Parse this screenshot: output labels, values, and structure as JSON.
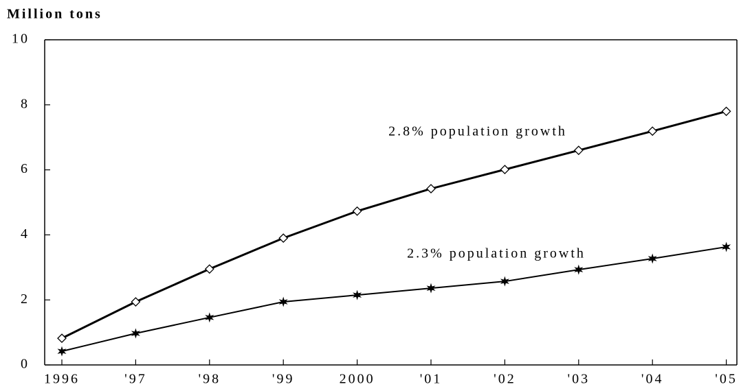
{
  "chart_data": {
    "type": "line",
    "title": "Million tons",
    "categories": [
      "1996",
      "'97",
      "'98",
      "'99",
      "2000",
      "'01",
      "'02",
      "'03",
      "'04",
      "'05"
    ],
    "series": [
      {
        "name": "2.8% population growth",
        "color": "#000000",
        "marker": "diamond",
        "values": [
          0.82,
          1.94,
          2.95,
          3.9,
          4.73,
          5.42,
          6.01,
          6.6,
          7.19,
          7.8
        ]
      },
      {
        "name": "2.3% population growth",
        "color": "#000000",
        "marker": "star",
        "values": [
          0.42,
          0.97,
          1.46,
          1.94,
          2.15,
          2.36,
          2.57,
          2.93,
          3.27,
          3.63
        ]
      }
    ],
    "ylim": [
      0,
      10
    ],
    "yticks": [
      0,
      2,
      4,
      6,
      8,
      10
    ],
    "grid": false
  }
}
